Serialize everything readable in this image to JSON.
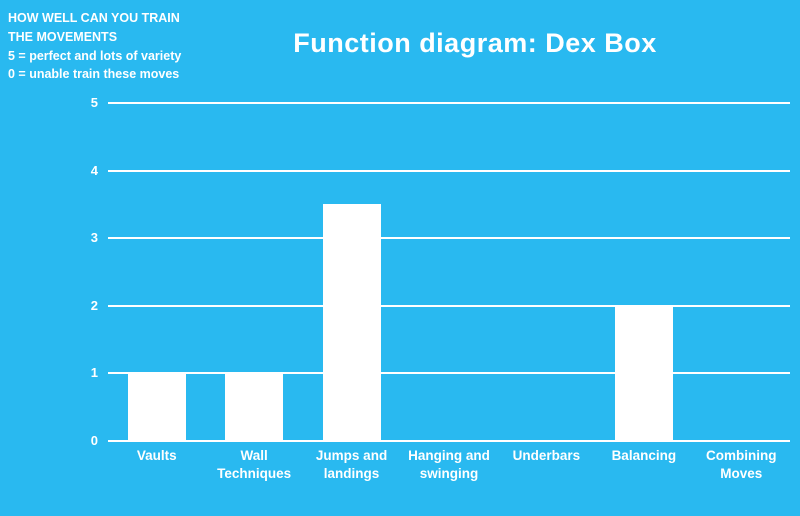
{
  "page": {
    "background_color": "#29b9f0",
    "text_color": "#ffffff"
  },
  "annotation": {
    "lines": [
      "HOW WELL CAN YOU TRAIN",
      "THE MOVEMENTS",
      "5 = perfect and lots of variety",
      "0 = unable train these moves"
    ]
  },
  "chart_data": {
    "type": "bar",
    "title": "Function diagram: Dex Box",
    "categories": [
      "Vaults",
      "Wall Techniques",
      "Jumps and landings",
      "Hanging and swinging",
      "Underbars",
      "Balancing",
      "Combining Moves"
    ],
    "values": [
      1,
      1,
      3.5,
      0,
      0,
      2,
      0
    ],
    "xlabel": "",
    "ylabel": "",
    "ylim": [
      0,
      5
    ],
    "yticks": [
      0,
      1,
      2,
      3,
      4,
      5
    ],
    "grid": true,
    "gridline_color": "#ffffff",
    "bar_color": "#ffffff",
    "legend": "none"
  }
}
